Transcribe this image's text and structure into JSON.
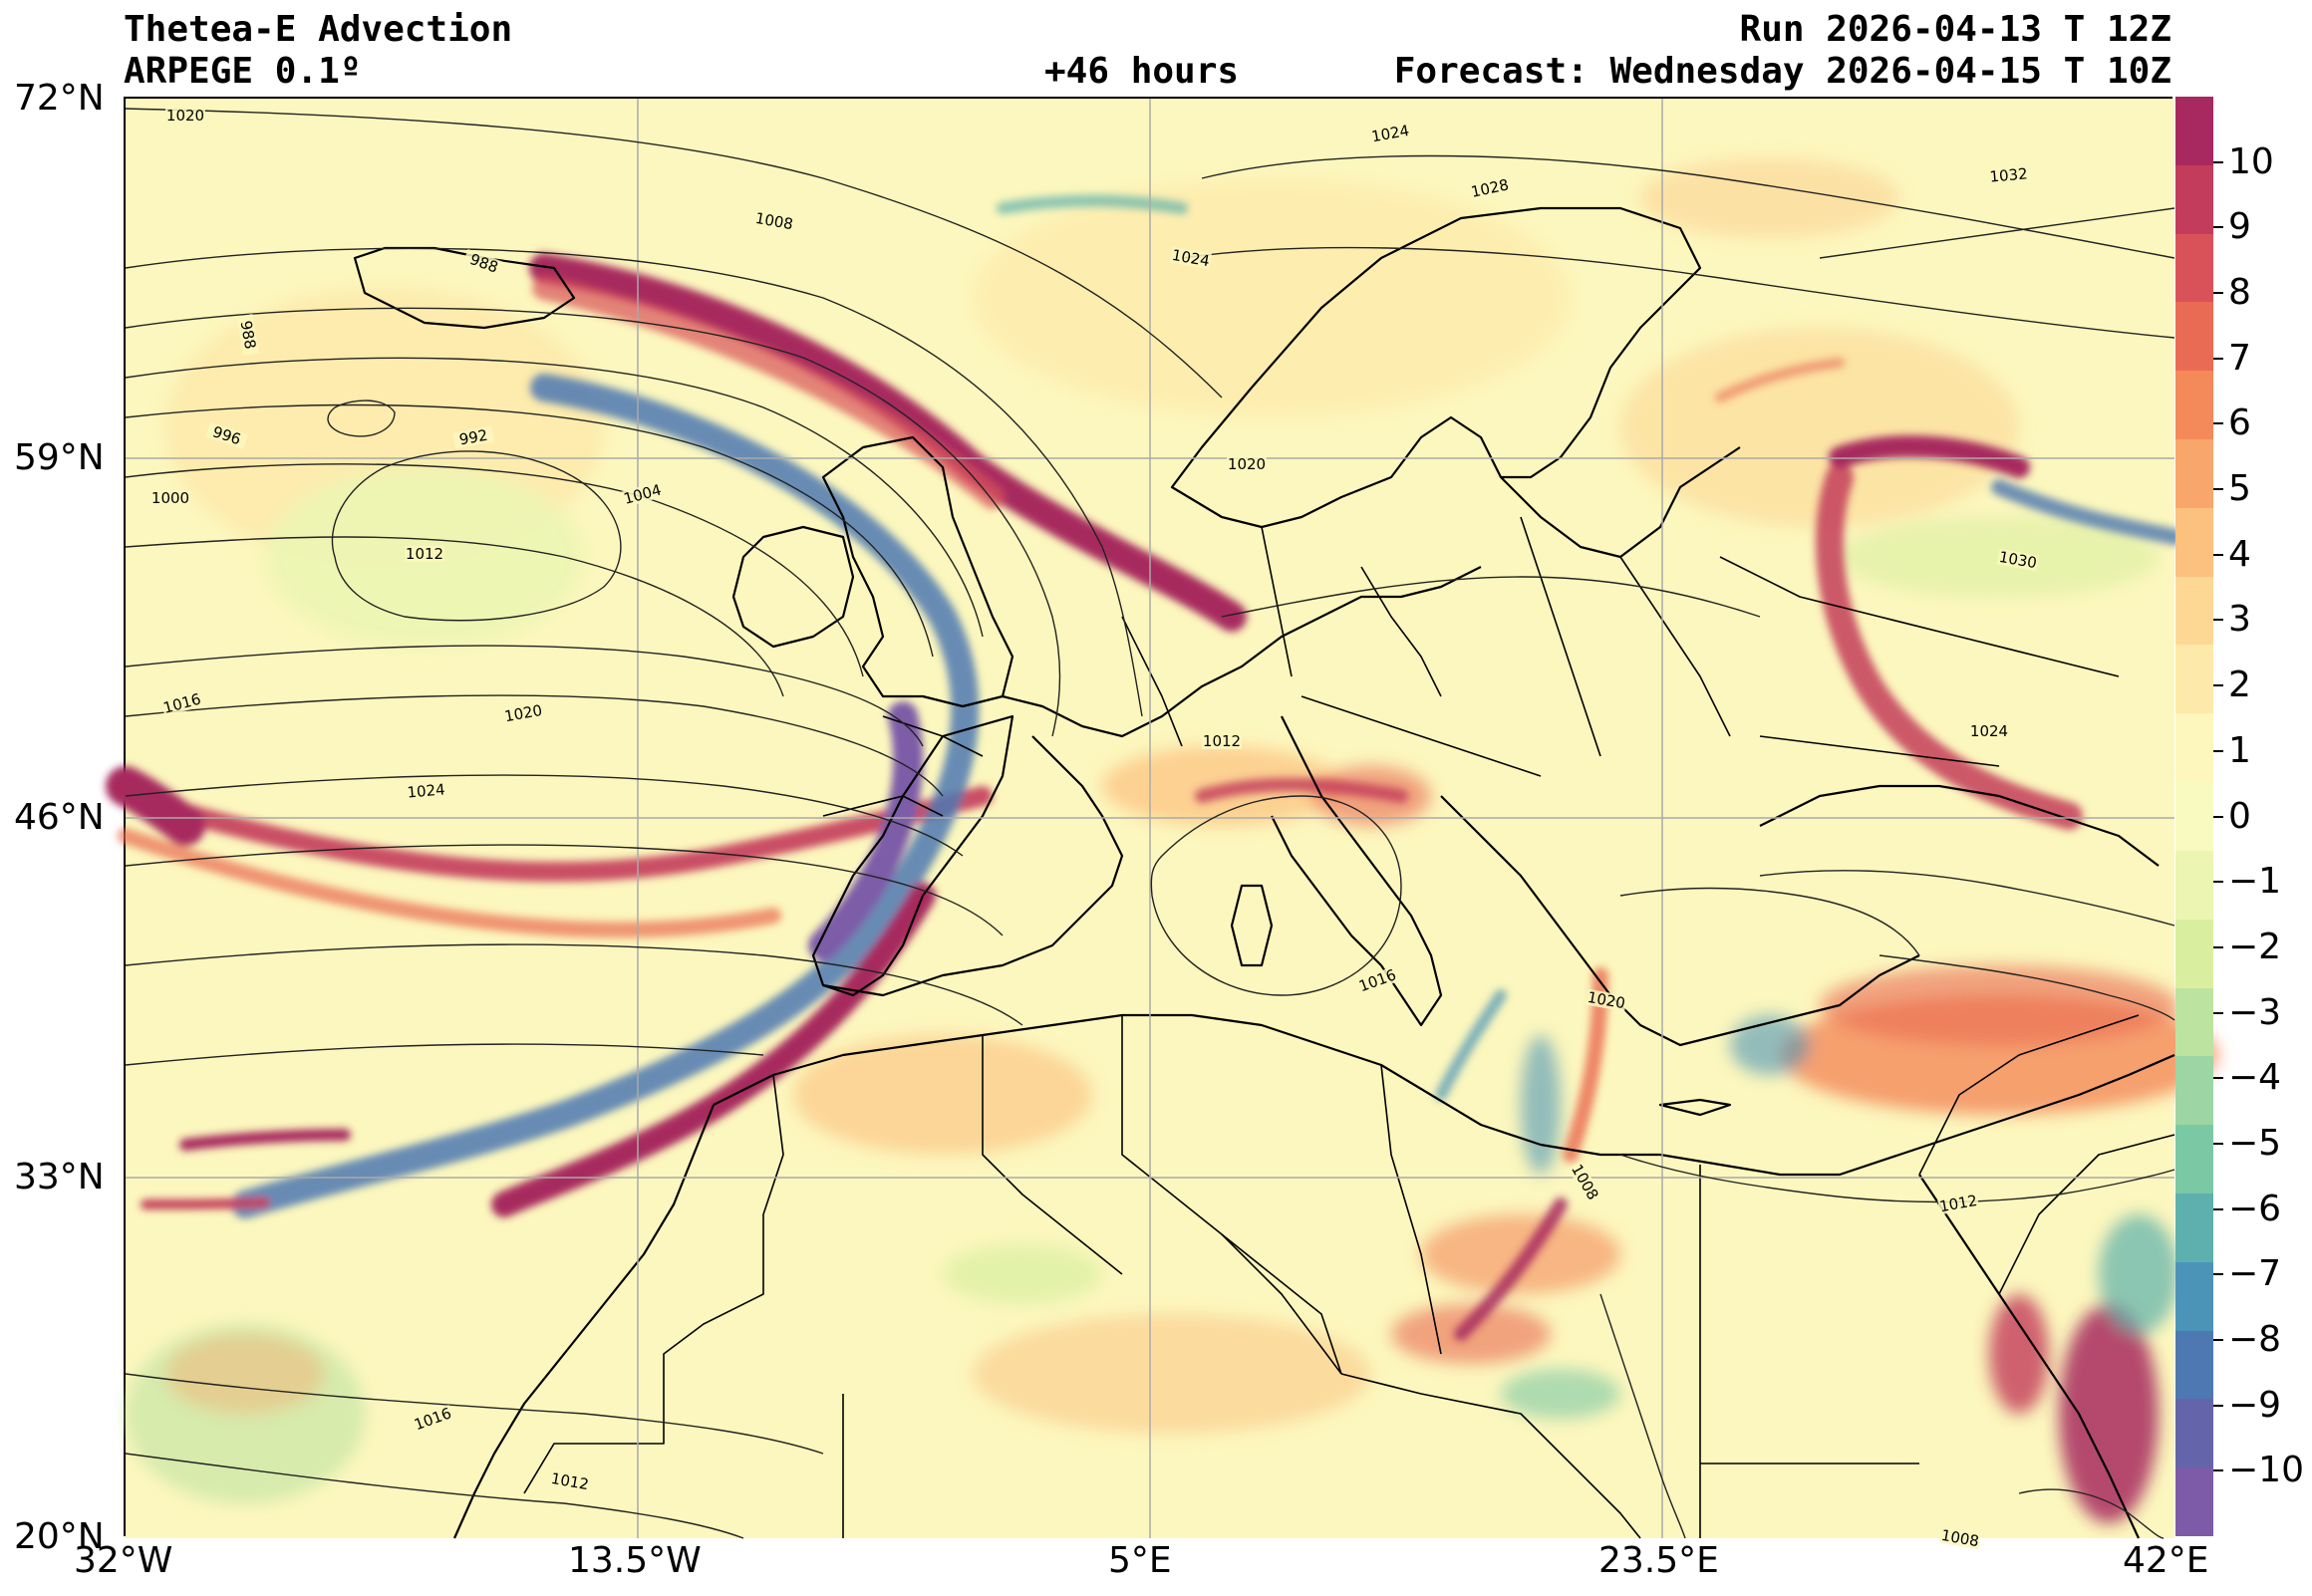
{
  "header": {
    "title": "Thetea-E Advection",
    "model": "ARPEGE 0.1º",
    "run": "Run 2026-04-13 T 12Z",
    "lead": "+46 hours",
    "forecast": "Forecast: Wednesday 2026-04-15 T 10Z"
  },
  "axes": {
    "lon_labels": [
      "32°W",
      "13.5°W",
      "5°E",
      "23.5°E",
      "42°E"
    ],
    "lat_labels": [
      "72°N",
      "59°N",
      "46°N",
      "33°N",
      "20°N"
    ],
    "lon_range": [
      -32,
      42
    ],
    "lat_range": [
      20,
      72
    ]
  },
  "colorbar": {
    "ticks": [
      "10",
      "9",
      "8",
      "7",
      "6",
      "5",
      "4",
      "3",
      "2",
      "1",
      "0",
      "−1",
      "−2",
      "−3",
      "−4",
      "−5",
      "−6",
      "−7",
      "−8",
      "−9",
      "−10"
    ],
    "range": [
      -11,
      11
    ],
    "colors_top_to_bottom": [
      "#a7295f",
      "#c33c5b",
      "#d9525a",
      "#ea6b53",
      "#f48a5a",
      "#f9a66c",
      "#fcc07f",
      "#fdd895",
      "#fde9a9",
      "#fdf6bd",
      "#f9fac0",
      "#ecf5b2",
      "#d9ef9f",
      "#bde3a0",
      "#9dd5a4",
      "#7bc8a5",
      "#5db0ad",
      "#4b94b8",
      "#4e78b2",
      "#6464aa",
      "#7d5ba8"
    ]
  },
  "isobars": [
    {
      "label": "1020"
    },
    {
      "label": "1024"
    },
    {
      "label": "1028"
    },
    {
      "label": "1032"
    },
    {
      "label": "1008"
    },
    {
      "label": "988"
    },
    {
      "label": "988"
    },
    {
      "label": "996"
    },
    {
      "label": "992"
    },
    {
      "label": "1000"
    },
    {
      "label": "1004"
    },
    {
      "label": "1012"
    },
    {
      "label": "1016"
    },
    {
      "label": "1020"
    },
    {
      "label": "1024"
    },
    {
      "label": "1024"
    },
    {
      "label": "1020"
    },
    {
      "label": "1030"
    },
    {
      "label": "1024"
    },
    {
      "label": "1012"
    },
    {
      "label": "1016"
    },
    {
      "label": "1020"
    },
    {
      "label": "1012"
    },
    {
      "label": "1008"
    },
    {
      "label": "1016"
    },
    {
      "label": "1012"
    },
    {
      "label": "1008"
    }
  ],
  "colors": {
    "background": "#fcf7be",
    "warm_strong": "#a7295f",
    "warm": "#ea6b53",
    "cold": "#4e78b2",
    "cold_strong": "#7d5ba8",
    "gridline": "#aaaaaa"
  }
}
